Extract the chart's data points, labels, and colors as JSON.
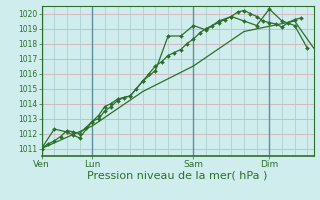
{
  "bg_color": "#d0eded",
  "grid_color_h": "#d8b0b8",
  "grid_color_v": "#a8c8c8",
  "line_color": "#2d6e2d",
  "marker_color": "#2d6e2d",
  "xlabel": "Pression niveau de la mer( hPa )",
  "xlabel_fontsize": 8,
  "ylim": [
    1010.5,
    1020.5
  ],
  "yticks": [
    1011,
    1012,
    1013,
    1014,
    1015,
    1016,
    1017,
    1018,
    1019,
    1020
  ],
  "day_labels": [
    "Ven",
    "Lun",
    "Sam",
    "Dim"
  ],
  "day_positions": [
    0,
    48,
    144,
    216
  ],
  "total_hours": 258,
  "series1_x": [
    0,
    6,
    12,
    18,
    24,
    30,
    36,
    42,
    48,
    54,
    60,
    66,
    72,
    78,
    84,
    90,
    96,
    102,
    108,
    114,
    120,
    126,
    132,
    138,
    144,
    150,
    156,
    162,
    168,
    174,
    180,
    186,
    192,
    198,
    204,
    210,
    216,
    222,
    228,
    234,
    240,
    246
  ],
  "series1_y": [
    1011.0,
    1011.3,
    1011.5,
    1011.8,
    1012.2,
    1012.1,
    1012.0,
    1012.4,
    1012.8,
    1013.0,
    1013.5,
    1013.8,
    1014.2,
    1014.4,
    1014.5,
    1015.0,
    1015.5,
    1016.0,
    1016.5,
    1016.8,
    1017.2,
    1017.4,
    1017.6,
    1018.0,
    1018.3,
    1018.7,
    1019.0,
    1019.2,
    1019.4,
    1019.6,
    1019.8,
    1020.1,
    1020.2,
    1020.0,
    1019.8,
    1019.5,
    1019.4,
    1019.3,
    1019.1,
    1019.4,
    1019.6,
    1019.7
  ],
  "series2_x": [
    0,
    12,
    24,
    30,
    36,
    48,
    54,
    60,
    66,
    72,
    84,
    96,
    108,
    120,
    132,
    144,
    156,
    168,
    180,
    192,
    204,
    216,
    228,
    240,
    252
  ],
  "series2_y": [
    1011.0,
    1012.3,
    1012.1,
    1011.9,
    1011.7,
    1012.8,
    1013.2,
    1013.8,
    1014.0,
    1014.3,
    1014.5,
    1015.5,
    1016.2,
    1018.5,
    1018.5,
    1019.2,
    1018.9,
    1019.5,
    1019.8,
    1019.5,
    1019.2,
    1020.3,
    1019.5,
    1019.2,
    1017.7
  ],
  "series3_x": [
    0,
    48,
    96,
    144,
    192,
    240,
    258
  ],
  "series3_y": [
    1011.0,
    1012.5,
    1014.8,
    1016.5,
    1018.8,
    1019.5,
    1017.7
  ]
}
